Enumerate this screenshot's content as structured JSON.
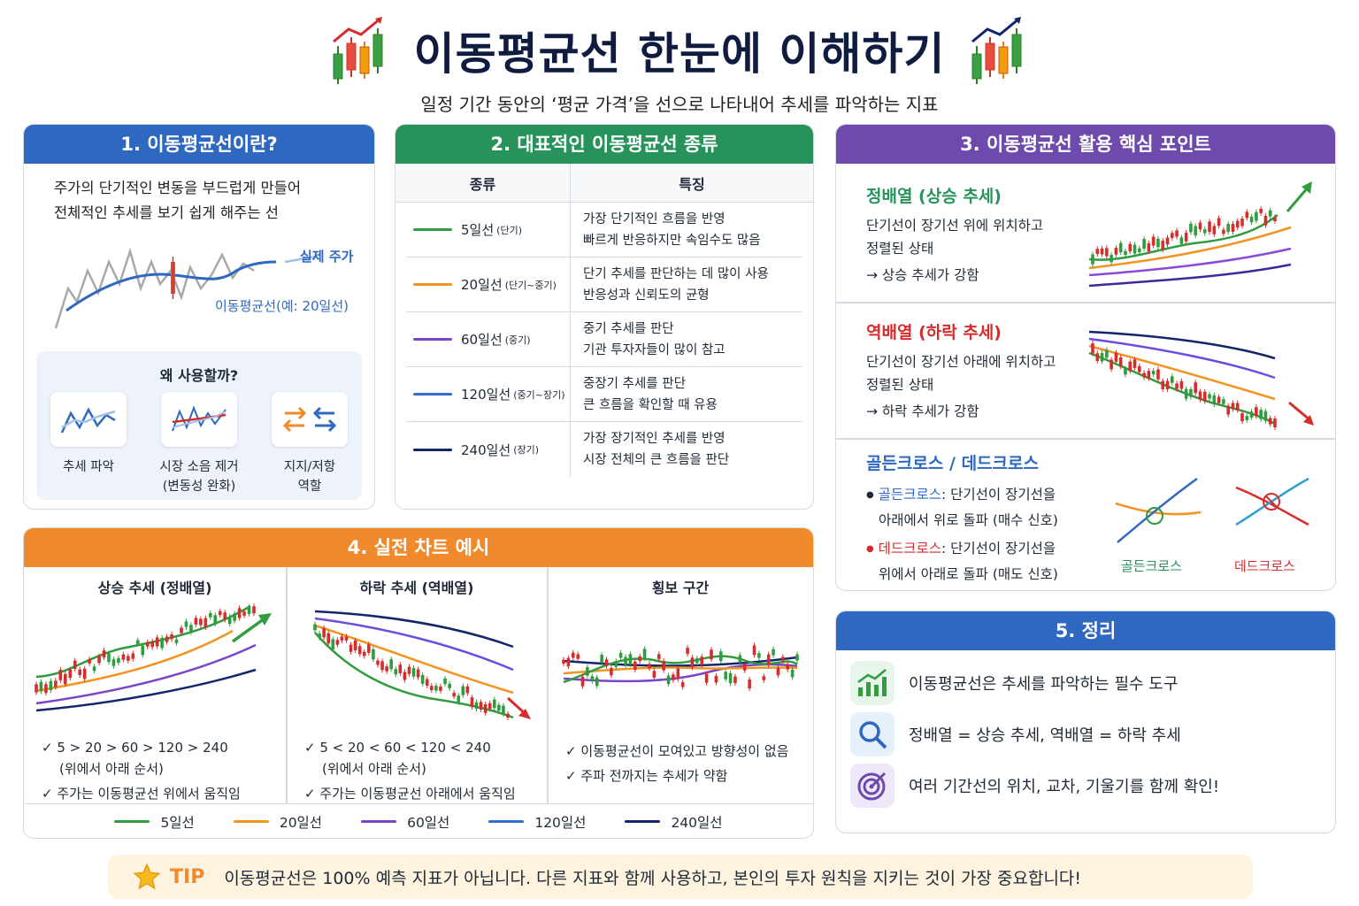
{
  "header": {
    "title": "이동평균선 한눈에 이해하기",
    "subtitle": "일정 기간 동안의 ‘평균 가격’을 선으로 나타내어 추세를 파악하는 지표",
    "icon": "candlestick-chart-icon"
  },
  "section1": {
    "title": "1. 이동평균선이란?",
    "desc_line1": "주가의 단기적인 변동을 부드럽게 만들어",
    "desc_line2": "전체적인 추세를 보기 쉽게 해주는 선",
    "label_price": "실제 주가",
    "label_ma": "이동평균선(예: 20일선)",
    "why_title": "왜 사용할까?",
    "why_items": [
      {
        "label1": "추세 파악",
        "label2": "",
        "icon": "trend-lines-icon"
      },
      {
        "label1": "시장 소음 제거",
        "label2": "(변동성 완화)",
        "icon": "noise-filter-icon"
      },
      {
        "label1": "지지/저항",
        "label2": "역할",
        "icon": "swap-arrows-icon"
      }
    ]
  },
  "section2": {
    "title": "2. 대표적인 이동평균선 종류",
    "col_type": "종류",
    "col_feature": "특징",
    "rows": [
      {
        "name": "5일선",
        "tag": "(단기)",
        "color": "#2e9c3f",
        "f1": "가장 단기적인 흐름을 반영",
        "f2": "빠르게 반응하지만 속임수도 많음"
      },
      {
        "name": "20일선",
        "tag": "(단기~중기)",
        "color": "#f39321",
        "f1": "단기 추세를 판단하는 데 많이 사용",
        "f2": "반응성과 신뢰도의 균형"
      },
      {
        "name": "60일선",
        "tag": "(중기)",
        "color": "#7b45c9",
        "f1": "중기 추세를 판단",
        "f2": "기관 투자자들이 많이 참고"
      },
      {
        "name": "120일선",
        "tag": "(중기~장기)",
        "color": "#2f6fd0",
        "f1": "중장기 추세를 판단",
        "f2": "큰 흐름을 확인할 때 유용"
      },
      {
        "name": "240일선",
        "tag": "(장기)",
        "color": "#13256b",
        "f1": "가장 장기적인 추세를 반영",
        "f2": "시장 전체의 큰 흐름을 판단"
      }
    ]
  },
  "section3": {
    "title": "3. 이동평균선 활용 핵심 포인트",
    "up_title": "정배열 (상승 추세)",
    "up_l1": "단기선이 장기선 위에 위치하고",
    "up_l2": "정렬된 상태",
    "up_l3": "→ 상승 추세가 강함",
    "down_title": "역배열 (하락 추세)",
    "down_l1": "단기선이 장기선 아래에 위치하고",
    "down_l2": "정렬된 상태",
    "down_l3": "→ 하락 추세가 강함",
    "cross_title": "골든크로스 / 데드크로스",
    "golden_name": "골든크로스",
    "golden_desc1": ": 단기선이 장기선을",
    "golden_desc2": "아래에서 위로 돌파 (매수 신호)",
    "dead_name": "데드크로스",
    "dead_desc1": ": 단기선이 장기선을",
    "dead_desc2": "위에서 아래로 돌파 (매도 신호)",
    "golden_label": "골든크로스",
    "dead_label": "데드크로스"
  },
  "section4": {
    "title": "4. 실전 차트 예시",
    "up": {
      "title": "상승 추세 (정배열)",
      "n1": "✓ 5 > 20 > 60 > 120 > 240",
      "n1b": "(위에서 아래 순서)",
      "n2": "✓ 주가는 이동평균선 위에서 움직임"
    },
    "down": {
      "title": "하락 추세 (역배열)",
      "n1": "✓ 5 < 20 < 60 < 120 < 240",
      "n1b": "(위에서 아래 순서)",
      "n2": "✓ 주가는 이동평균선 아래에서 움직임"
    },
    "side": {
      "title": "횡보 구간",
      "n1": "✓ 이동평균선이 모여있고 방향성이 없음",
      "n2": "✓ 주파 전까지는 추세가 약함"
    },
    "legend": [
      {
        "label": "5일선",
        "color": "#2e9c3f"
      },
      {
        "label": "20일선",
        "color": "#f39321"
      },
      {
        "label": "60일선",
        "color": "#7b45c9"
      },
      {
        "label": "120일선",
        "color": "#2f6fd0"
      },
      {
        "label": "240일선",
        "color": "#13256b"
      }
    ]
  },
  "section5": {
    "title": "5. 정리",
    "items": [
      {
        "text": "이동평균선은 추세를 파악하는 필수 도구",
        "icon": "growth-chart-icon"
      },
      {
        "text": "정배열 = 상승 추세, 역배열 = 하락 추세",
        "icon": "magnifier-icon"
      },
      {
        "text": "여러 기간선의 위치, 교차, 기울기를 함께 확인!",
        "icon": "target-icon"
      }
    ]
  },
  "tip": {
    "label": "TIP",
    "text": "이동평균선은 100% 예측 지표가 아닙니다. 다른 지표와 함께 사용하고, 본인의 투자 원칙을 지키는 것이 가장 중요합니다!",
    "icon": "star-icon"
  },
  "colors": {
    "up": "#d62c2c",
    "down": "#2e9c3f",
    "accent": "#2f68c0"
  }
}
